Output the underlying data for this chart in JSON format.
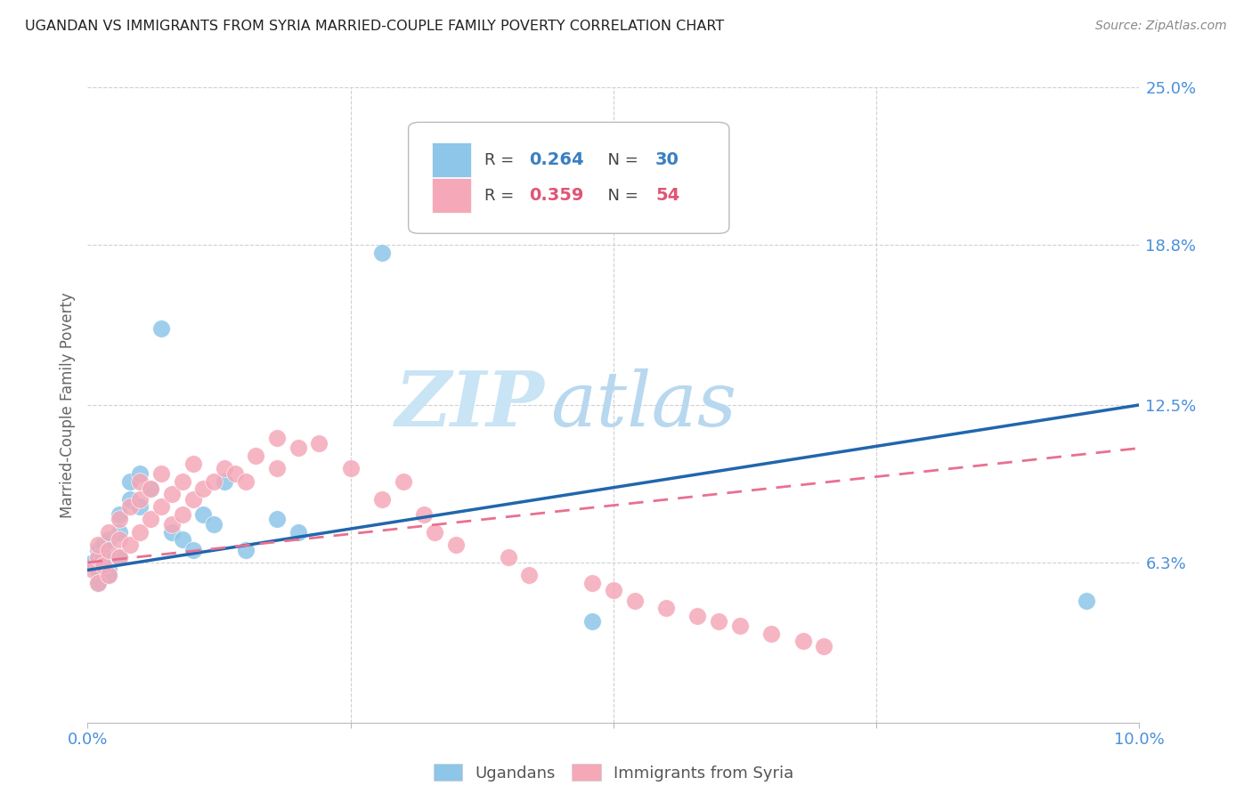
{
  "title": "UGANDAN VS IMMIGRANTS FROM SYRIA MARRIED-COUPLE FAMILY POVERTY CORRELATION CHART",
  "source": "Source: ZipAtlas.com",
  "ylabel": "Married-Couple Family Poverty",
  "xlim": [
    0.0,
    0.1
  ],
  "ylim": [
    0.0,
    0.25
  ],
  "ytick_labels_right": [
    "25.0%",
    "18.8%",
    "12.5%",
    "6.3%"
  ],
  "ytick_positions_right": [
    0.25,
    0.188,
    0.125,
    0.063
  ],
  "ugandan_color": "#8dc6e8",
  "syria_color": "#f5a8b8",
  "trend_uganda_color": "#2166ac",
  "trend_syria_color": "#e87090",
  "watermark_zip": "ZIP",
  "watermark_atlas": "atlas",
  "watermark_color": "#c8e4f5",
  "uganda_trend_x": [
    0.0,
    0.1
  ],
  "uganda_trend_y": [
    0.06,
    0.125
  ],
  "syria_trend_x": [
    0.0,
    0.1
  ],
  "syria_trend_y": [
    0.063,
    0.108
  ],
  "ugandan_scatter_x": [
    0.0005,
    0.001,
    0.001,
    0.001,
    0.0015,
    0.0015,
    0.002,
    0.002,
    0.002,
    0.003,
    0.003,
    0.003,
    0.004,
    0.004,
    0.005,
    0.005,
    0.006,
    0.007,
    0.008,
    0.009,
    0.01,
    0.011,
    0.012,
    0.013,
    0.015,
    0.018,
    0.02,
    0.028,
    0.048,
    0.095
  ],
  "ugandan_scatter_y": [
    0.063,
    0.06,
    0.055,
    0.068,
    0.065,
    0.07,
    0.06,
    0.072,
    0.058,
    0.065,
    0.075,
    0.082,
    0.088,
    0.095,
    0.085,
    0.098,
    0.092,
    0.155,
    0.075,
    0.072,
    0.068,
    0.082,
    0.078,
    0.095,
    0.068,
    0.08,
    0.075,
    0.185,
    0.04,
    0.048
  ],
  "syria_scatter_x": [
    0.0005,
    0.001,
    0.001,
    0.001,
    0.0015,
    0.002,
    0.002,
    0.002,
    0.003,
    0.003,
    0.003,
    0.004,
    0.004,
    0.005,
    0.005,
    0.005,
    0.006,
    0.006,
    0.007,
    0.007,
    0.008,
    0.008,
    0.009,
    0.009,
    0.01,
    0.01,
    0.011,
    0.012,
    0.013,
    0.014,
    0.015,
    0.016,
    0.018,
    0.018,
    0.02,
    0.022,
    0.025,
    0.028,
    0.03,
    0.032,
    0.033,
    0.035,
    0.04,
    0.042,
    0.048,
    0.05,
    0.052,
    0.055,
    0.058,
    0.06,
    0.062,
    0.065,
    0.068,
    0.07
  ],
  "syria_scatter_y": [
    0.06,
    0.055,
    0.065,
    0.07,
    0.062,
    0.058,
    0.068,
    0.075,
    0.065,
    0.072,
    0.08,
    0.07,
    0.085,
    0.075,
    0.088,
    0.095,
    0.08,
    0.092,
    0.085,
    0.098,
    0.078,
    0.09,
    0.082,
    0.095,
    0.088,
    0.102,
    0.092,
    0.095,
    0.1,
    0.098,
    0.095,
    0.105,
    0.1,
    0.112,
    0.108,
    0.11,
    0.1,
    0.088,
    0.095,
    0.082,
    0.075,
    0.07,
    0.065,
    0.058,
    0.055,
    0.052,
    0.048,
    0.045,
    0.042,
    0.04,
    0.038,
    0.035,
    0.032,
    0.03
  ]
}
